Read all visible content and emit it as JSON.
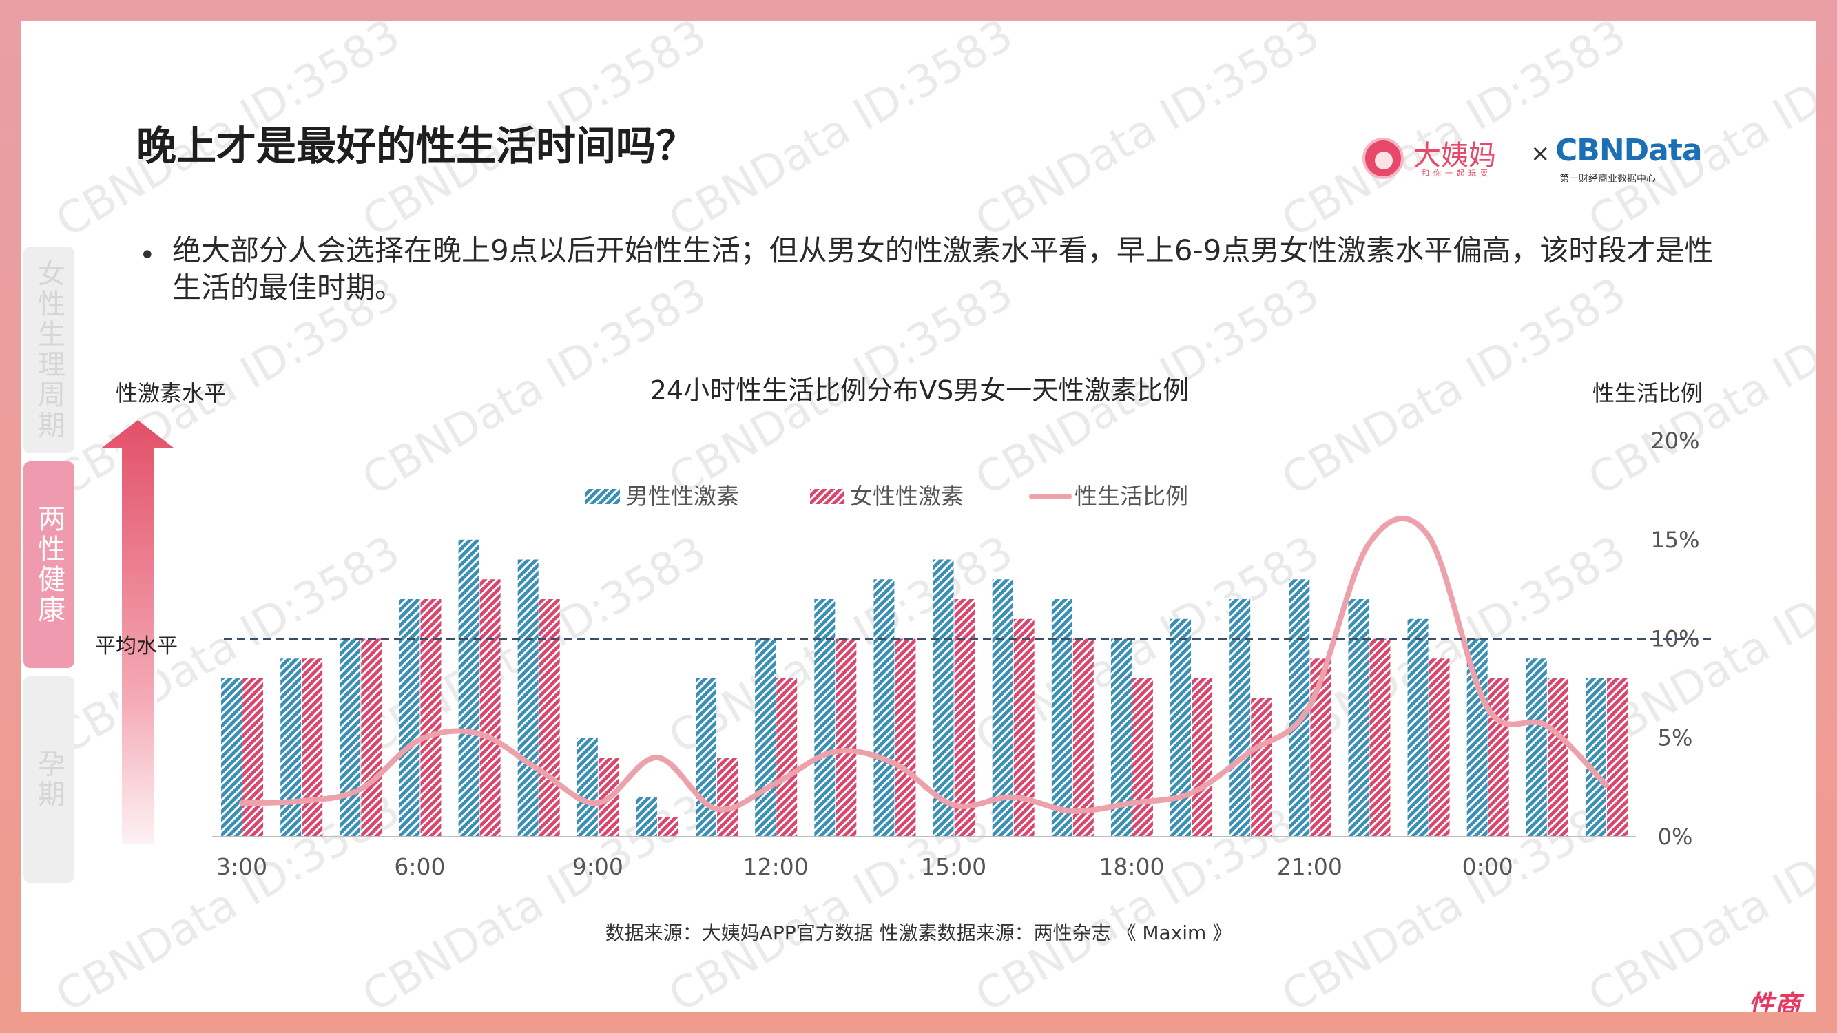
{
  "title": "晚上才是最好的性生活时间吗？",
  "logo": {
    "brand": "大姨妈",
    "brand_sub": "和你一起玩耍",
    "times": "×",
    "partner": "CBNData",
    "partner_sub": "第一财经商业数据中心"
  },
  "watermark": "CBNData ID:3583",
  "sidebar": {
    "tabs": [
      {
        "label": "女性生理周期",
        "active": false
      },
      {
        "label": "两性健康",
        "active": true
      },
      {
        "label": "孕期",
        "active": false
      }
    ]
  },
  "bullet": {
    "dot": "•",
    "text": "绝大部分人会选择在晚上9点以后开始性生活；但从男女的性激素水平看，早上6-9点男女性激素水平偏高，该时段才是性生活的最佳时期。"
  },
  "source": "数据来源：大姨妈APP官方数据 性激素数据来源：两性杂志 《 Maxim 》",
  "corner_logo": "性商网",
  "colors": {
    "male": "#3a8fb5",
    "female": "#d9466e",
    "line": "#eda2ab",
    "arrow": "#e25068",
    "avg_line": "#3b4e63"
  },
  "chart_data": {
    "type": "bar",
    "title": "24小时性生活比例分布VS男女一天性激素比例",
    "ylabel_left": "性激素水平",
    "ylabel_right": "性生活比例",
    "avg_label": "平均水平",
    "avg_value": 10,
    "ylim_left": [
      0,
      20
    ],
    "ylim_right": [
      0,
      20
    ],
    "right_ticks": [
      "0%",
      "5%",
      "10%",
      "15%",
      "20%"
    ],
    "categories": [
      "3:00",
      "4:00",
      "5:00",
      "6:00",
      "7:00",
      "8:00",
      "9:00",
      "10:00",
      "11:00",
      "12:00",
      "13:00",
      "14:00",
      "15:00",
      "16:00",
      "17:00",
      "18:00",
      "19:00",
      "20:00",
      "21:00",
      "22:00",
      "23:00",
      "0:00",
      "1:00",
      "2:00"
    ],
    "tick_labels": [
      {
        "label": "3:00",
        "index": 0
      },
      {
        "label": "6:00",
        "index": 3
      },
      {
        "label": "9:00",
        "index": 6
      },
      {
        "label": "12:00",
        "index": 9
      },
      {
        "label": "15:00",
        "index": 12
      },
      {
        "label": "18:00",
        "index": 15
      },
      {
        "label": "21:00",
        "index": 18
      },
      {
        "label": "0:00",
        "index": 21
      }
    ],
    "series": [
      {
        "name": "男性性激素",
        "kind": "bar",
        "values": [
          8,
          9,
          10,
          12,
          15,
          14,
          5,
          2,
          8,
          10,
          12,
          13,
          14,
          13,
          12,
          10,
          11,
          12,
          13,
          12,
          11,
          10,
          9,
          8
        ]
      },
      {
        "name": "女性性激素",
        "kind": "bar",
        "values": [
          8,
          9,
          10,
          12,
          13,
          12,
          4,
          1,
          4,
          8,
          10,
          10,
          12,
          11,
          10,
          8,
          8,
          7,
          9,
          10,
          9,
          8,
          8,
          8
        ]
      },
      {
        "name": "性生活比例",
        "kind": "line",
        "unit": "%",
        "values": [
          1.7,
          1.8,
          2.4,
          4.9,
          5.2,
          3.4,
          1.7,
          4.0,
          1.4,
          2.7,
          4.3,
          3.7,
          1.6,
          2.0,
          1.3,
          1.7,
          2.2,
          4.3,
          6.6,
          14.8,
          15.2,
          6.5,
          5.6,
          2.6
        ]
      }
    ],
    "legend_position": "top-center",
    "grid": false
  }
}
